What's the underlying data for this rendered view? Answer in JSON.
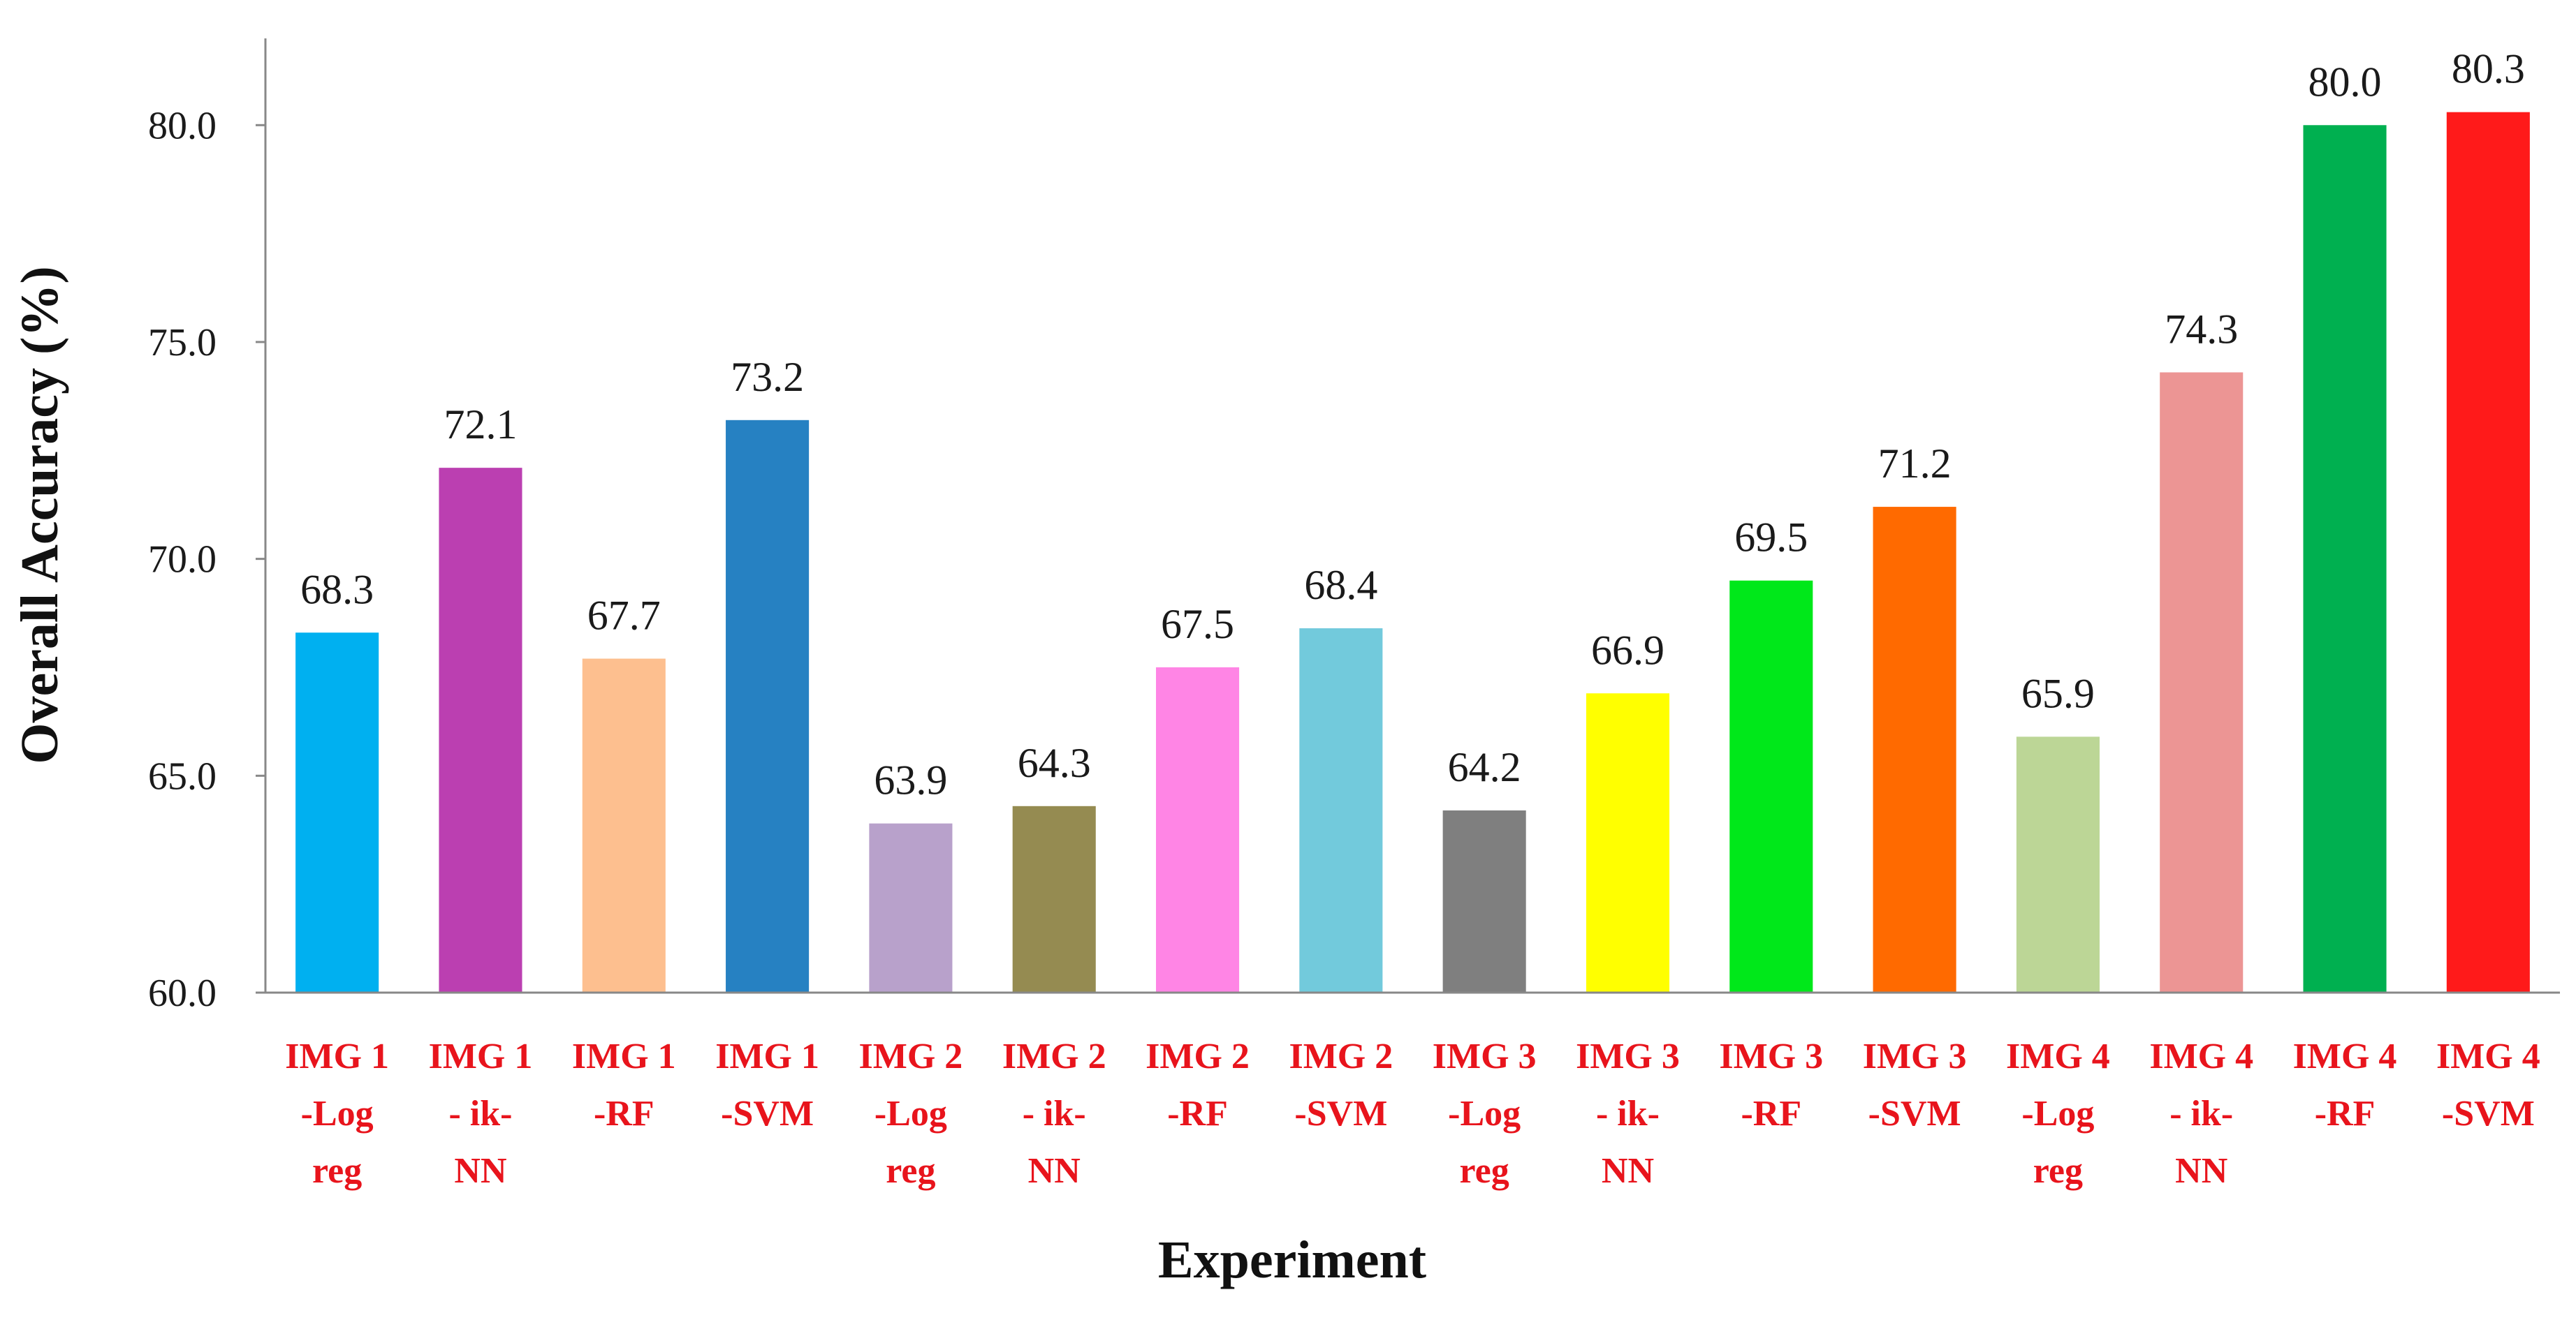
{
  "chart_data": {
    "type": "bar",
    "title": "",
    "xlabel": "Experiment",
    "ylabel": "Overall Accuracy (%)",
    "ylim": [
      60,
      82
    ],
    "yticks": [
      60.0,
      65.0,
      70.0,
      75.0,
      80.0
    ],
    "ytick_labels": [
      "60.0",
      "65.0",
      "70.0",
      "75.0",
      "80.0"
    ],
    "grid": false,
    "legend": "none",
    "category_label_color": "#e8141c",
    "categories": [
      [
        "IMG 1",
        "-Log",
        "reg"
      ],
      [
        "IMG 1",
        "- ik-",
        "NN"
      ],
      [
        "IMG 1",
        "-RF"
      ],
      [
        "IMG 1",
        "-SVM"
      ],
      [
        "IMG 2",
        "-Log",
        "reg"
      ],
      [
        "IMG 2",
        "- ik-",
        "NN"
      ],
      [
        "IMG 2",
        "-RF"
      ],
      [
        "IMG 2",
        "-SVM"
      ],
      [
        "IMG 3",
        "-Log",
        "reg"
      ],
      [
        "IMG 3",
        "- ik-",
        "NN"
      ],
      [
        "IMG 3",
        "-RF"
      ],
      [
        "IMG 3",
        "-SVM"
      ],
      [
        "IMG 4",
        "-Log",
        "reg"
      ],
      [
        "IMG 4",
        "- ik-",
        "NN"
      ],
      [
        "IMG 4",
        "-RF"
      ],
      [
        "IMG 4",
        "-SVM"
      ]
    ],
    "values": [
      68.3,
      72.1,
      67.7,
      73.2,
      63.9,
      64.3,
      67.5,
      68.4,
      64.2,
      66.9,
      69.5,
      71.2,
      65.9,
      74.3,
      80.0,
      80.3
    ],
    "value_labels": [
      "68.3",
      "72.1",
      "67.7",
      "73.2",
      "63.9",
      "64.3",
      "67.5",
      "68.4",
      "64.2",
      "66.9",
      "69.5",
      "71.2",
      "65.9",
      "74.3",
      "80.0",
      "80.3"
    ],
    "colors": [
      "#00b0f0",
      "#bb3fb1",
      "#fdbf8f",
      "#2681c2",
      "#b8a1cb",
      "#958b51",
      "#ff85e5",
      "#72cadc",
      "#7f7f7f",
      "#ffff00",
      "#00e81a",
      "#ff6a00",
      "#bcd696",
      "#ec9594",
      "#00b050",
      "#ff1a1a"
    ]
  }
}
